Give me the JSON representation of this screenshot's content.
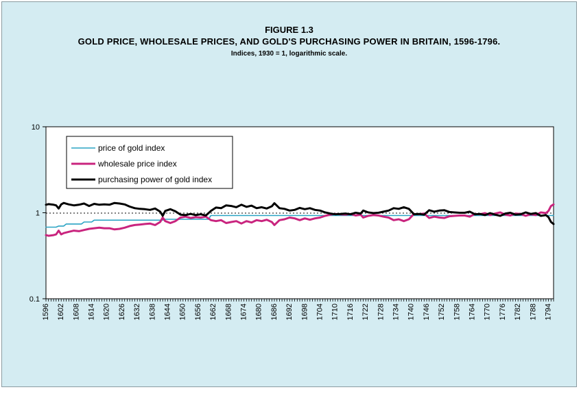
{
  "chart_data": {
    "type": "line",
    "title": "FIGURE 1.3",
    "subtitle": "GOLD PRICE, WHOLESALE PRICES, AND GOLD'S PURCHASING POWER IN BRITAIN, 1596-1796.",
    "note": "Indices, 1930 = 1, logarithmic scale.",
    "y_scale": "log",
    "ylim": [
      0.1,
      10
    ],
    "y_ticks": [
      "10",
      "1",
      "0.1"
    ],
    "xlim": [
      1596,
      1796
    ],
    "x_ticks": [
      1596,
      1602,
      1608,
      1614,
      1620,
      1626,
      1632,
      1638,
      1644,
      1650,
      1656,
      1662,
      1668,
      1674,
      1680,
      1686,
      1692,
      1698,
      1704,
      1710,
      1716,
      1722,
      1728,
      1734,
      1740,
      1746,
      1752,
      1758,
      1764,
      1770,
      1776,
      1782,
      1788,
      1794
    ],
    "reference_line": 1,
    "legend_position": "top-left",
    "series": [
      {
        "name": "price of gold index",
        "color": "#29a3c3",
        "points": [
          [
            1596,
            0.68
          ],
          [
            1600,
            0.68
          ],
          [
            1601,
            0.7
          ],
          [
            1603,
            0.7
          ],
          [
            1604,
            0.74
          ],
          [
            1610,
            0.74
          ],
          [
            1611,
            0.78
          ],
          [
            1614,
            0.78
          ],
          [
            1615,
            0.82
          ],
          [
            1642,
            0.82
          ],
          [
            1643,
            0.84
          ],
          [
            1660,
            0.84
          ],
          [
            1661,
            0.93
          ],
          [
            1796,
            0.93
          ]
        ]
      },
      {
        "name": "wholesale price index",
        "color": "#c9247e",
        "points": [
          [
            1596,
            0.55
          ],
          [
            1597,
            0.54
          ],
          [
            1599,
            0.55
          ],
          [
            1600,
            0.56
          ],
          [
            1601,
            0.62
          ],
          [
            1602,
            0.56
          ],
          [
            1603,
            0.58
          ],
          [
            1605,
            0.6
          ],
          [
            1607,
            0.62
          ],
          [
            1609,
            0.61
          ],
          [
            1611,
            0.63
          ],
          [
            1613,
            0.65
          ],
          [
            1615,
            0.66
          ],
          [
            1617,
            0.67
          ],
          [
            1619,
            0.66
          ],
          [
            1621,
            0.66
          ],
          [
            1623,
            0.64
          ],
          [
            1625,
            0.65
          ],
          [
            1627,
            0.67
          ],
          [
            1629,
            0.7
          ],
          [
            1631,
            0.72
          ],
          [
            1633,
            0.73
          ],
          [
            1635,
            0.74
          ],
          [
            1637,
            0.75
          ],
          [
            1639,
            0.72
          ],
          [
            1641,
            0.78
          ],
          [
            1642,
            0.88
          ],
          [
            1643,
            0.8
          ],
          [
            1645,
            0.76
          ],
          [
            1647,
            0.8
          ],
          [
            1649,
            0.88
          ],
          [
            1651,
            0.9
          ],
          [
            1653,
            0.87
          ],
          [
            1655,
            0.89
          ],
          [
            1657,
            0.88
          ],
          [
            1659,
            0.9
          ],
          [
            1661,
            0.82
          ],
          [
            1663,
            0.8
          ],
          [
            1665,
            0.82
          ],
          [
            1667,
            0.76
          ],
          [
            1669,
            0.78
          ],
          [
            1671,
            0.8
          ],
          [
            1673,
            0.75
          ],
          [
            1675,
            0.8
          ],
          [
            1677,
            0.77
          ],
          [
            1679,
            0.82
          ],
          [
            1681,
            0.8
          ],
          [
            1683,
            0.83
          ],
          [
            1685,
            0.78
          ],
          [
            1686,
            0.72
          ],
          [
            1688,
            0.82
          ],
          [
            1690,
            0.84
          ],
          [
            1692,
            0.88
          ],
          [
            1694,
            0.86
          ],
          [
            1696,
            0.82
          ],
          [
            1698,
            0.86
          ],
          [
            1700,
            0.83
          ],
          [
            1702,
            0.86
          ],
          [
            1704,
            0.88
          ],
          [
            1706,
            0.92
          ],
          [
            1708,
            0.95
          ],
          [
            1710,
            0.97
          ],
          [
            1712,
            0.96
          ],
          [
            1714,
            0.95
          ],
          [
            1716,
            0.97
          ],
          [
            1718,
            0.93
          ],
          [
            1720,
            0.95
          ],
          [
            1721,
            0.88
          ],
          [
            1723,
            0.92
          ],
          [
            1725,
            0.94
          ],
          [
            1727,
            0.93
          ],
          [
            1729,
            0.9
          ],
          [
            1731,
            0.88
          ],
          [
            1733,
            0.82
          ],
          [
            1735,
            0.84
          ],
          [
            1737,
            0.8
          ],
          [
            1739,
            0.84
          ],
          [
            1741,
            0.97
          ],
          [
            1743,
            0.96
          ],
          [
            1745,
            0.98
          ],
          [
            1747,
            0.87
          ],
          [
            1749,
            0.9
          ],
          [
            1751,
            0.88
          ],
          [
            1753,
            0.87
          ],
          [
            1755,
            0.91
          ],
          [
            1757,
            0.92
          ],
          [
            1759,
            0.93
          ],
          [
            1761,
            0.93
          ],
          [
            1763,
            0.9
          ],
          [
            1765,
            0.97
          ],
          [
            1767,
            0.96
          ],
          [
            1769,
            0.99
          ],
          [
            1771,
            0.94
          ],
          [
            1773,
            0.98
          ],
          [
            1775,
            1.01
          ],
          [
            1777,
            0.95
          ],
          [
            1779,
            0.93
          ],
          [
            1781,
            0.98
          ],
          [
            1783,
            0.97
          ],
          [
            1785,
            0.92
          ],
          [
            1787,
            0.96
          ],
          [
            1789,
            0.94
          ],
          [
            1791,
            1.01
          ],
          [
            1793,
            0.99
          ],
          [
            1794,
            1.05
          ],
          [
            1795,
            1.2
          ],
          [
            1796,
            1.25
          ]
        ]
      },
      {
        "name": "purchasing power of gold index",
        "color": "#000000",
        "points": [
          [
            1596,
            1.24
          ],
          [
            1597,
            1.26
          ],
          [
            1599,
            1.24
          ],
          [
            1600,
            1.22
          ],
          [
            1601,
            1.12
          ],
          [
            1602,
            1.25
          ],
          [
            1603,
            1.3
          ],
          [
            1605,
            1.25
          ],
          [
            1607,
            1.22
          ],
          [
            1609,
            1.24
          ],
          [
            1611,
            1.28
          ],
          [
            1613,
            1.2
          ],
          [
            1615,
            1.27
          ],
          [
            1617,
            1.24
          ],
          [
            1619,
            1.25
          ],
          [
            1621,
            1.24
          ],
          [
            1623,
            1.3
          ],
          [
            1625,
            1.28
          ],
          [
            1627,
            1.25
          ],
          [
            1629,
            1.18
          ],
          [
            1631,
            1.13
          ],
          [
            1633,
            1.11
          ],
          [
            1635,
            1.1
          ],
          [
            1637,
            1.08
          ],
          [
            1639,
            1.12
          ],
          [
            1641,
            1.03
          ],
          [
            1642,
            0.92
          ],
          [
            1643,
            1.05
          ],
          [
            1645,
            1.1
          ],
          [
            1647,
            1.04
          ],
          [
            1649,
            0.95
          ],
          [
            1651,
            0.94
          ],
          [
            1653,
            0.97
          ],
          [
            1655,
            0.94
          ],
          [
            1657,
            0.96
          ],
          [
            1659,
            0.93
          ],
          [
            1661,
            1.05
          ],
          [
            1663,
            1.15
          ],
          [
            1665,
            1.13
          ],
          [
            1667,
            1.22
          ],
          [
            1669,
            1.2
          ],
          [
            1671,
            1.16
          ],
          [
            1673,
            1.24
          ],
          [
            1675,
            1.17
          ],
          [
            1677,
            1.21
          ],
          [
            1679,
            1.13
          ],
          [
            1681,
            1.16
          ],
          [
            1683,
            1.12
          ],
          [
            1685,
            1.19
          ],
          [
            1686,
            1.29
          ],
          [
            1688,
            1.13
          ],
          [
            1690,
            1.11
          ],
          [
            1692,
            1.06
          ],
          [
            1694,
            1.08
          ],
          [
            1696,
            1.14
          ],
          [
            1698,
            1.1
          ],
          [
            1700,
            1.13
          ],
          [
            1702,
            1.08
          ],
          [
            1704,
            1.06
          ],
          [
            1706,
            1.01
          ],
          [
            1708,
            0.98
          ],
          [
            1710,
            0.96
          ],
          [
            1712,
            0.97
          ],
          [
            1714,
            0.98
          ],
          [
            1716,
            0.96
          ],
          [
            1718,
            1.0
          ],
          [
            1720,
            0.98
          ],
          [
            1721,
            1.06
          ],
          [
            1723,
            1.01
          ],
          [
            1725,
            0.99
          ],
          [
            1727,
            1.0
          ],
          [
            1729,
            1.03
          ],
          [
            1731,
            1.06
          ],
          [
            1733,
            1.13
          ],
          [
            1735,
            1.11
          ],
          [
            1737,
            1.16
          ],
          [
            1739,
            1.11
          ],
          [
            1741,
            0.96
          ],
          [
            1743,
            0.97
          ],
          [
            1745,
            0.95
          ],
          [
            1747,
            1.07
          ],
          [
            1749,
            1.03
          ],
          [
            1751,
            1.06
          ],
          [
            1753,
            1.07
          ],
          [
            1755,
            1.02
          ],
          [
            1757,
            1.01
          ],
          [
            1759,
            1.0
          ],
          [
            1761,
            1.0
          ],
          [
            1763,
            1.03
          ],
          [
            1765,
            0.96
          ],
          [
            1767,
            0.97
          ],
          [
            1769,
            0.94
          ],
          [
            1771,
            0.99
          ],
          [
            1773,
            0.95
          ],
          [
            1775,
            0.92
          ],
          [
            1777,
            0.98
          ],
          [
            1779,
            1.0
          ],
          [
            1781,
            0.95
          ],
          [
            1783,
            0.96
          ],
          [
            1785,
            1.01
          ],
          [
            1787,
            0.97
          ],
          [
            1789,
            0.99
          ],
          [
            1791,
            0.92
          ],
          [
            1793,
            0.94
          ],
          [
            1794,
            0.89
          ],
          [
            1795,
            0.78
          ],
          [
            1796,
            0.74
          ]
        ]
      }
    ]
  }
}
